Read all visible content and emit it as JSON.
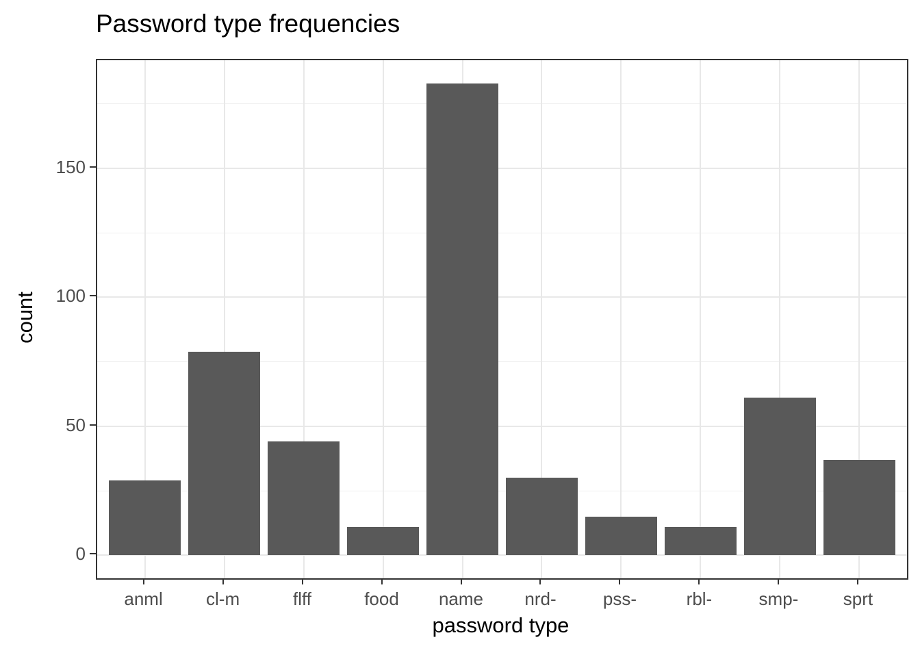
{
  "chart_data": {
    "type": "bar",
    "title": "Password type frequencies",
    "xlabel": "password type",
    "ylabel": "count",
    "categories": [
      "anml",
      "cl-m",
      "flff",
      "food",
      "name",
      "nrd-",
      "pss-",
      "rbl-",
      "smp-",
      "sprt"
    ],
    "values": [
      29,
      79,
      44,
      11,
      183,
      30,
      15,
      11,
      61,
      37
    ],
    "y_major_ticks": [
      0,
      50,
      100,
      150
    ],
    "y_minor_ticks": [
      25,
      75,
      125,
      175
    ],
    "ylim": [
      -9.6,
      192.2
    ],
    "grid": "on",
    "legend": "none",
    "colors": {
      "bar_fill": "#595959",
      "panel_border": "#333333",
      "grid_major": "#e8e8e8",
      "grid_minor": "#f0f0f0",
      "tick_mark": "#333333",
      "tick_label": "#4d4d4d",
      "title": "#000000",
      "axis_title": "#000000"
    }
  }
}
